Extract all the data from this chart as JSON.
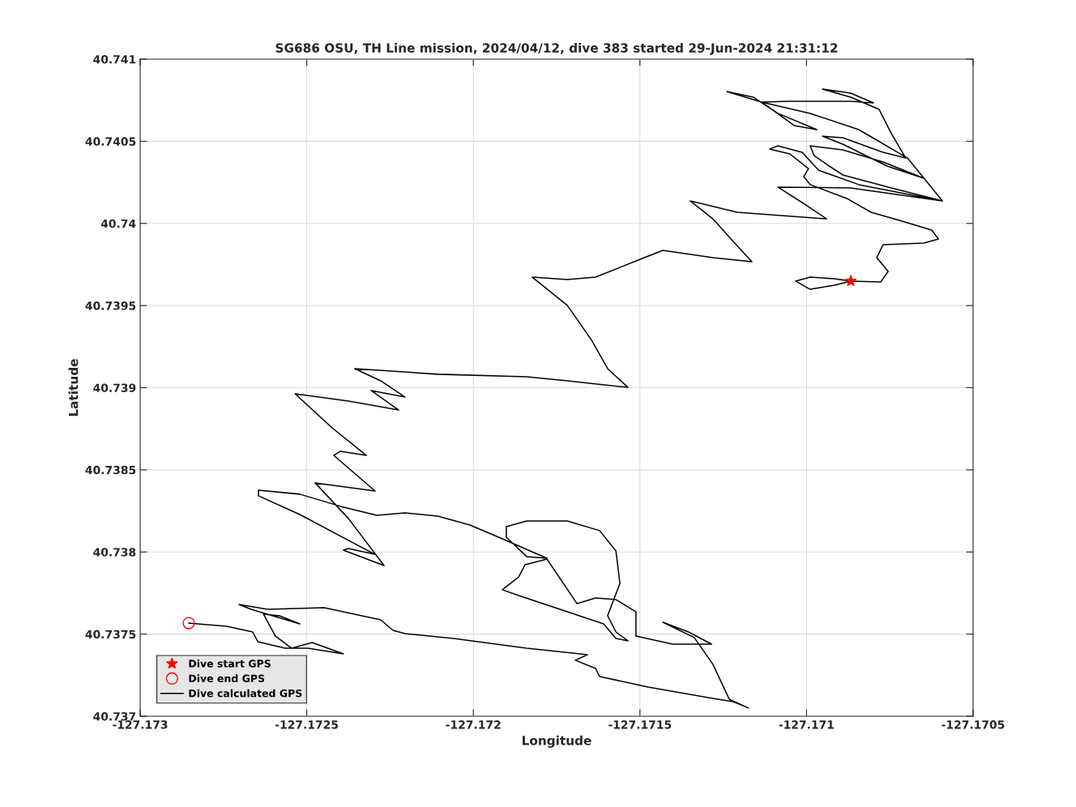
{
  "chart_data": {
    "type": "line",
    "title": "SG686 OSU, TH Line mission, 2024/04/12, dive 383 started 29-Jun-2024 21:31:12",
    "xlabel": "Longitude",
    "ylabel": "Latitude",
    "xlim": [
      -127.173,
      -127.1705
    ],
    "xticks": [
      -127.173,
      -127.1725,
      -127.172,
      -127.1715,
      -127.171,
      -127.1705
    ],
    "ylim": [
      40.737,
      40.741
    ],
    "yticks": [
      40.737,
      40.7375,
      40.738,
      40.7385,
      40.739,
      40.7395,
      40.74,
      40.7405,
      40.741
    ],
    "grid": true,
    "legend": "bottom left",
    "series": [
      {
        "name": "Dive start GPS",
        "type": "scatter",
        "marker": "star",
        "color": "#ff0000",
        "x": [
          -127.170867
        ],
        "values": [
          40.739649
        ]
      },
      {
        "name": "Dive end GPS",
        "type": "scatter",
        "marker": "circle",
        "color": "#ff0000",
        "x": [
          -127.172854
        ],
        "values": [
          40.737567
        ]
      },
      {
        "name": "Dive calculated GPS",
        "color": "#000000",
        "x": [
          -127.170867,
          -127.170916,
          -127.170989,
          -127.171033,
          -127.170989,
          -127.170916,
          -127.170867,
          -127.170777,
          -127.170755,
          -127.170789,
          -127.17077,
          -127.170648,
          -127.170604,
          -127.170624,
          -127.170721,
          -127.170806,
          -127.170879,
          -127.170989,
          -127.171008,
          -127.170994,
          -127.17105,
          -127.17111,
          -127.171086,
          -127.171013,
          -127.170964,
          -127.170843,
          -127.170592,
          -127.170745,
          -127.170891,
          -127.170928,
          -127.170977,
          -127.170989,
          -127.170891,
          -127.17077,
          -127.170648,
          -127.170758,
          -127.170891,
          -127.170952,
          -127.170891,
          -127.17077,
          -127.170702,
          -127.170745,
          -127.170782,
          -127.170867,
          -127.170952,
          -127.170867,
          -127.170799,
          -127.170867,
          -127.17105,
          -127.171135,
          -127.171239,
          -127.171159,
          -127.171086,
          -127.170969,
          -127.171037,
          -127.171135,
          -127.170989,
          -127.170843,
          -127.170697,
          -127.170592,
          -127.170867,
          -127.171086,
          -127.171013,
          -127.17094,
          -127.171208,
          -127.171349,
          -127.171281,
          -127.17122,
          -127.171164,
          -127.171281,
          -127.171431,
          -127.171499,
          -127.171633,
          -127.171718,
          -127.171823,
          -127.171718,
          -127.171645,
          -127.171597,
          -127.171536,
          -127.171718,
          -127.17184,
          -127.172107,
          -127.172356,
          -127.172278,
          -127.172205,
          -127.172307,
          -127.172224,
          -127.172375,
          -127.172535,
          -127.172424,
          -127.172321,
          -127.172399,
          -127.172419,
          -127.172295,
          -127.172475,
          -127.172375,
          -127.172268,
          -127.17239,
          -127.172375,
          -127.172297,
          -127.172521,
          -127.172645,
          -127.172645,
          -127.172521,
          -127.172399,
          -127.17229,
          -127.172205,
          -127.172107,
          -127.17201,
          -127.171913,
          -127.171779,
          -127.17184,
          -127.171901,
          -127.171901,
          -127.17184,
          -127.171718,
          -127.171621,
          -127.171572,
          -127.17156,
          -127.171597,
          -127.171572,
          -127.171536,
          -127.171572,
          -127.171609,
          -127.171718,
          -127.171864,
          -127.171913,
          -127.171864,
          -127.171845,
          -127.171779,
          -127.171689,
          -127.171633,
          -127.171572,
          -127.171512,
          -127.171512,
          -127.171402,
          -127.171285,
          -127.171354,
          -127.171431,
          -127.171337,
          -127.171281,
          -127.171232,
          -127.171174,
          -127.17122,
          -127.171281,
          -127.171475,
          -127.171621,
          -127.171633,
          -127.171694,
          -127.171657,
          -127.17184,
          -127.172059,
          -127.172205,
          -127.172241,
          -127.172278,
          -127.172448,
          -127.172618,
          -127.172703,
          -127.172667,
          -127.172521,
          -127.172582,
          -127.17263,
          -127.172594,
          -127.172545,
          -127.172484,
          -127.17239,
          -127.172497,
          -127.172565,
          -127.172647,
          -127.172662,
          -127.17274,
          -127.172854
        ],
        "values": [
          40.739649,
          40.739663,
          40.739673,
          40.739649,
          40.739599,
          40.739624,
          40.739649,
          40.739644,
          40.739708,
          40.739792,
          40.739871,
          40.73988,
          40.739905,
          40.739959,
          40.740018,
          40.740068,
          40.740152,
          40.740236,
          40.740285,
          40.740334,
          40.740423,
          40.740453,
          40.740472,
          40.740433,
          40.740324,
          40.740236,
          40.740137,
          40.740216,
          40.740295,
          40.740344,
          40.740413,
          40.740472,
          40.740448,
          40.740374,
          40.740275,
          40.740349,
          40.740482,
          40.740531,
          40.740522,
          40.740433,
          40.740398,
          40.740546,
          40.740694,
          40.740768,
          40.740818,
          40.740793,
          40.740734,
          40.740744,
          40.740744,
          40.740739,
          40.740803,
          40.740768,
          40.74067,
          40.740571,
          40.740596,
          40.740739,
          40.74067,
          40.740571,
          40.740398,
          40.740137,
          40.740216,
          40.740221,
          40.740127,
          40.740028,
          40.740068,
          40.740137,
          40.740028,
          40.73989,
          40.739767,
          40.739792,
          40.739836,
          40.739782,
          40.739673,
          40.739659,
          40.739673,
          40.739501,
          40.739289,
          40.739116,
          40.739002,
          40.739042,
          40.739067,
          40.739082,
          40.739116,
          40.739042,
          40.738943,
          40.738983,
          40.738864,
          40.738919,
          40.738963,
          40.738756,
          40.738588,
          40.738613,
          40.738588,
          40.738371,
          40.738421,
          40.738204,
          40.737917,
          40.738011,
          40.738021,
          40.737987,
          40.738228,
          40.738342,
          40.738376,
          40.738352,
          40.738278,
          40.738223,
          40.738238,
          40.738218,
          40.738164,
          40.73808,
          40.737962,
          40.737972,
          40.73809,
          40.738154,
          40.738189,
          40.738189,
          40.73813,
          40.738006,
          40.737809,
          40.737612,
          40.737513,
          40.737459,
          40.737474,
          40.737562,
          40.737636,
          40.737735,
          40.73777,
          40.737848,
          40.737922,
          40.737957,
          40.737686,
          40.73772,
          40.73771,
          40.737636,
          40.737488,
          40.737439,
          40.737439,
          40.737513,
          40.737572,
          40.737479,
          40.737316,
          40.737104,
          40.73705,
          40.737089,
          40.737109,
          40.737178,
          40.737242,
          40.737291,
          40.737341,
          40.737375,
          40.737414,
          40.737474,
          40.737503,
          40.737523,
          40.737587,
          40.737661,
          40.737651,
          40.737681,
          40.737651,
          40.737562,
          40.737612,
          40.737622,
          40.737488,
          40.737414,
          40.737449,
          40.73738,
          40.737414,
          40.737414,
          40.737454,
          40.737513,
          40.737548,
          40.737567
        ]
      }
    ]
  }
}
